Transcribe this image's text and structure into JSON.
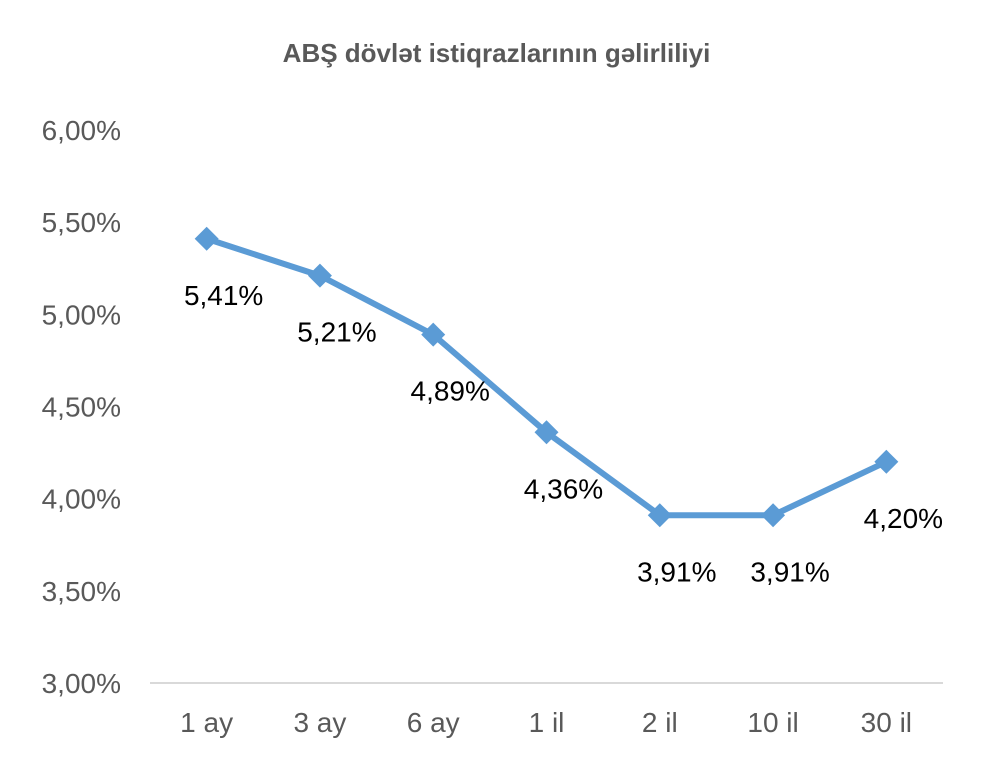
{
  "chart_data": {
    "type": "line",
    "title": "ABŞ dövlət istiqrazlarının gəlirliliyi",
    "xlabel": "",
    "ylabel": "",
    "categories": [
      "1 ay",
      "3 ay",
      "6 ay",
      "1 il",
      "2 il",
      "10 il",
      "30 il"
    ],
    "series": [
      {
        "values": [
          5.41,
          5.21,
          4.89,
          4.36,
          3.91,
          3.91,
          4.2
        ],
        "data_labels": [
          "5,41%",
          "5,21%",
          "4,89%",
          "4,36%",
          "3,91%",
          "3,91%",
          "4,20%"
        ],
        "color": "#5b9bd5",
        "marker": "diamond"
      }
    ],
    "ylim": [
      3.0,
      6.0
    ],
    "y_ticks": [
      3.0,
      3.5,
      4.0,
      4.5,
      5.0,
      5.5,
      6.0
    ],
    "y_tick_labels": [
      "3,00%",
      "3,50%",
      "4,00%",
      "4,50%",
      "5,00%",
      "5,50%",
      "6,00%"
    ],
    "grid": false,
    "legend": "none"
  },
  "colors": {
    "series": "#5b9bd5",
    "axis": "#d9d9d9",
    "text": "#595959"
  }
}
